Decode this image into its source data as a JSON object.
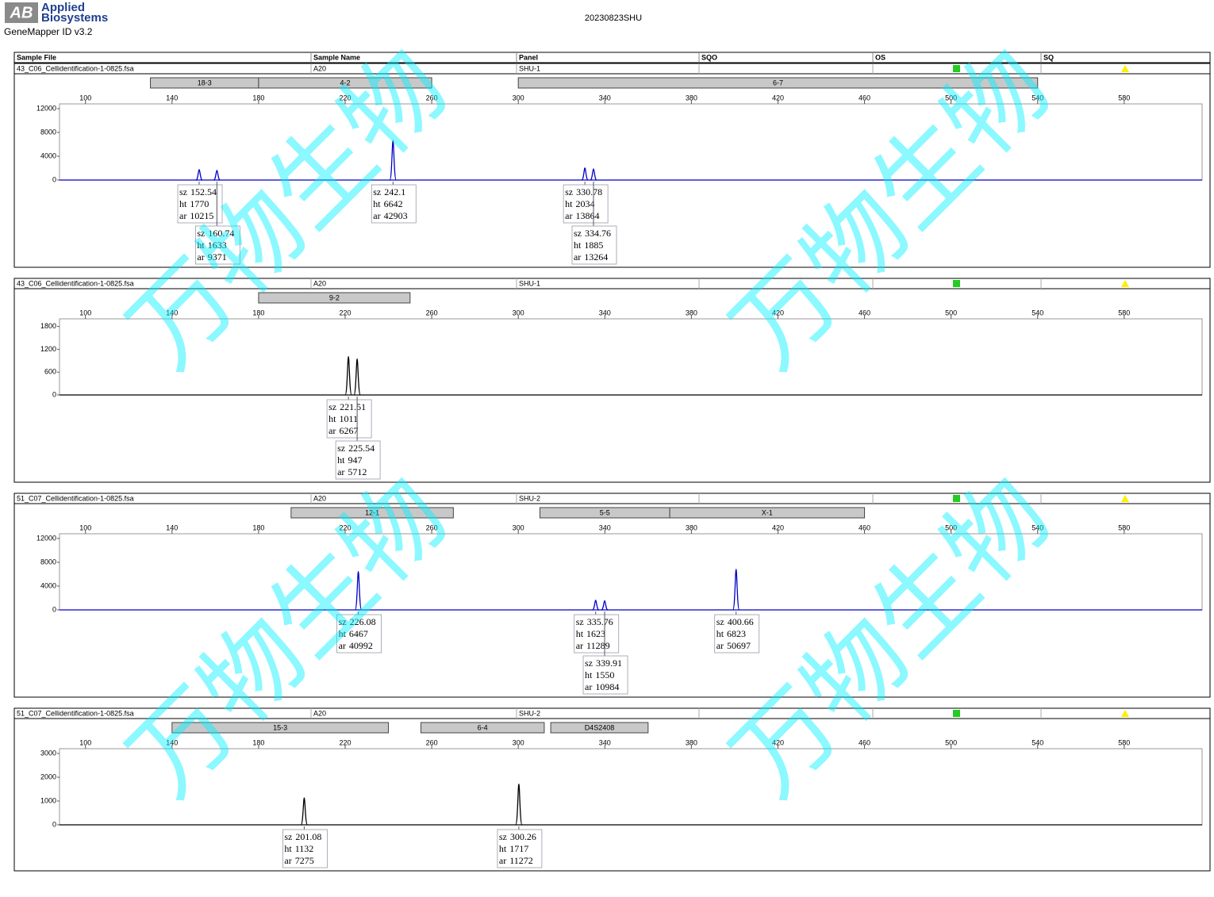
{
  "header": {
    "logo": "AB",
    "brand": [
      "Applied",
      "Biosystems"
    ],
    "software": "GeneMapper ID v3.2",
    "title": "20230823SHU"
  },
  "columns": [
    "Sample File",
    "Sample Name",
    "Panel",
    "SQO",
    "OS",
    "SQ"
  ],
  "watermark": "万物生物",
  "peak_fields": [
    "sz",
    "ht",
    "ar"
  ],
  "chart_data": [
    {
      "type": "peaks",
      "sample_file": "43_C06_Cellidentification-1-0825.fsa",
      "sample_name": "A20",
      "panel": "SHU-1",
      "color": "#0000c8",
      "xlim": [
        88,
        616
      ],
      "xticks": [
        100,
        140,
        180,
        220,
        260,
        300,
        340,
        380,
        420,
        460,
        500,
        540,
        580
      ],
      "ylim": [
        0,
        12800
      ],
      "yticks": [
        0,
        4000,
        8000,
        12000
      ],
      "markers": [
        {
          "label": "18-3",
          "range": [
            130,
            180
          ]
        },
        {
          "label": "4-2",
          "range": [
            180,
            260
          ]
        },
        {
          "label": "6-7",
          "range": [
            300,
            540
          ]
        }
      ],
      "peaks": [
        {
          "sz": 152.54,
          "ht": 1770,
          "ar": 10215
        },
        {
          "sz": 160.74,
          "ht": 1633,
          "ar": 9371
        },
        {
          "sz": 242.1,
          "ht": 6642,
          "ar": 42903
        },
        {
          "sz": 330.78,
          "ht": 2034,
          "ar": 13864
        },
        {
          "sz": 334.76,
          "ht": 1885,
          "ar": 13264
        }
      ]
    },
    {
      "type": "peaks",
      "sample_file": "43_C06_Cellidentification-1-0825.fsa",
      "sample_name": "A20",
      "panel": "SHU-1",
      "color": "#000000",
      "xlim": [
        88,
        616
      ],
      "xticks": [
        100,
        140,
        180,
        220,
        260,
        300,
        340,
        380,
        420,
        460,
        500,
        540,
        580
      ],
      "ylim": [
        0,
        2000
      ],
      "yticks": [
        0,
        600,
        1200,
        1800
      ],
      "markers": [
        {
          "label": "9-2",
          "range": [
            180,
            250
          ]
        }
      ],
      "peaks": [
        {
          "sz": 221.51,
          "ht": 1011,
          "ar": 6267
        },
        {
          "sz": 225.54,
          "ht": 947,
          "ar": 5712
        }
      ]
    },
    {
      "type": "peaks",
      "sample_file": "51_C07_Cellidentification-1-0825.fsa",
      "sample_name": "A20",
      "panel": "SHU-2",
      "color": "#0000c8",
      "xlim": [
        88,
        616
      ],
      "xticks": [
        100,
        140,
        180,
        220,
        260,
        300,
        340,
        380,
        420,
        460,
        500,
        540,
        580
      ],
      "ylim": [
        0,
        12800
      ],
      "yticks": [
        0,
        4000,
        8000,
        12000
      ],
      "markers": [
        {
          "label": "12-1",
          "range": [
            195,
            270
          ]
        },
        {
          "label": "5-5",
          "range": [
            310,
            370
          ]
        },
        {
          "label": "X-1",
          "range": [
            370,
            460
          ]
        }
      ],
      "peaks": [
        {
          "sz": 226.08,
          "ht": 6467,
          "ar": 40992
        },
        {
          "sz": 335.76,
          "ht": 1623,
          "ar": 11289
        },
        {
          "sz": 339.91,
          "ht": 1550,
          "ar": 10984
        },
        {
          "sz": 400.66,
          "ht": 6823,
          "ar": 50697
        }
      ]
    },
    {
      "type": "peaks",
      "sample_file": "51_C07_Cellidentification-1-0825.fsa",
      "sample_name": "A20",
      "panel": "SHU-2",
      "color": "#000000",
      "xlim": [
        88,
        616
      ],
      "xticks": [
        100,
        140,
        180,
        220,
        260,
        300,
        340,
        380,
        420,
        460,
        500,
        540,
        580
      ],
      "ylim": [
        0,
        3200
      ],
      "yticks": [
        0,
        1000,
        2000,
        3000
      ],
      "markers": [
        {
          "label": "15-3",
          "range": [
            140,
            240
          ]
        },
        {
          "label": "6-4",
          "range": [
            255,
            312
          ]
        },
        {
          "label": "D4S2408",
          "range": [
            315,
            360
          ]
        }
      ],
      "peaks": [
        {
          "sz": 201.08,
          "ht": 1132,
          "ar": 7275
        },
        {
          "sz": 300.26,
          "ht": 1717,
          "ar": 11272
        }
      ]
    }
  ]
}
